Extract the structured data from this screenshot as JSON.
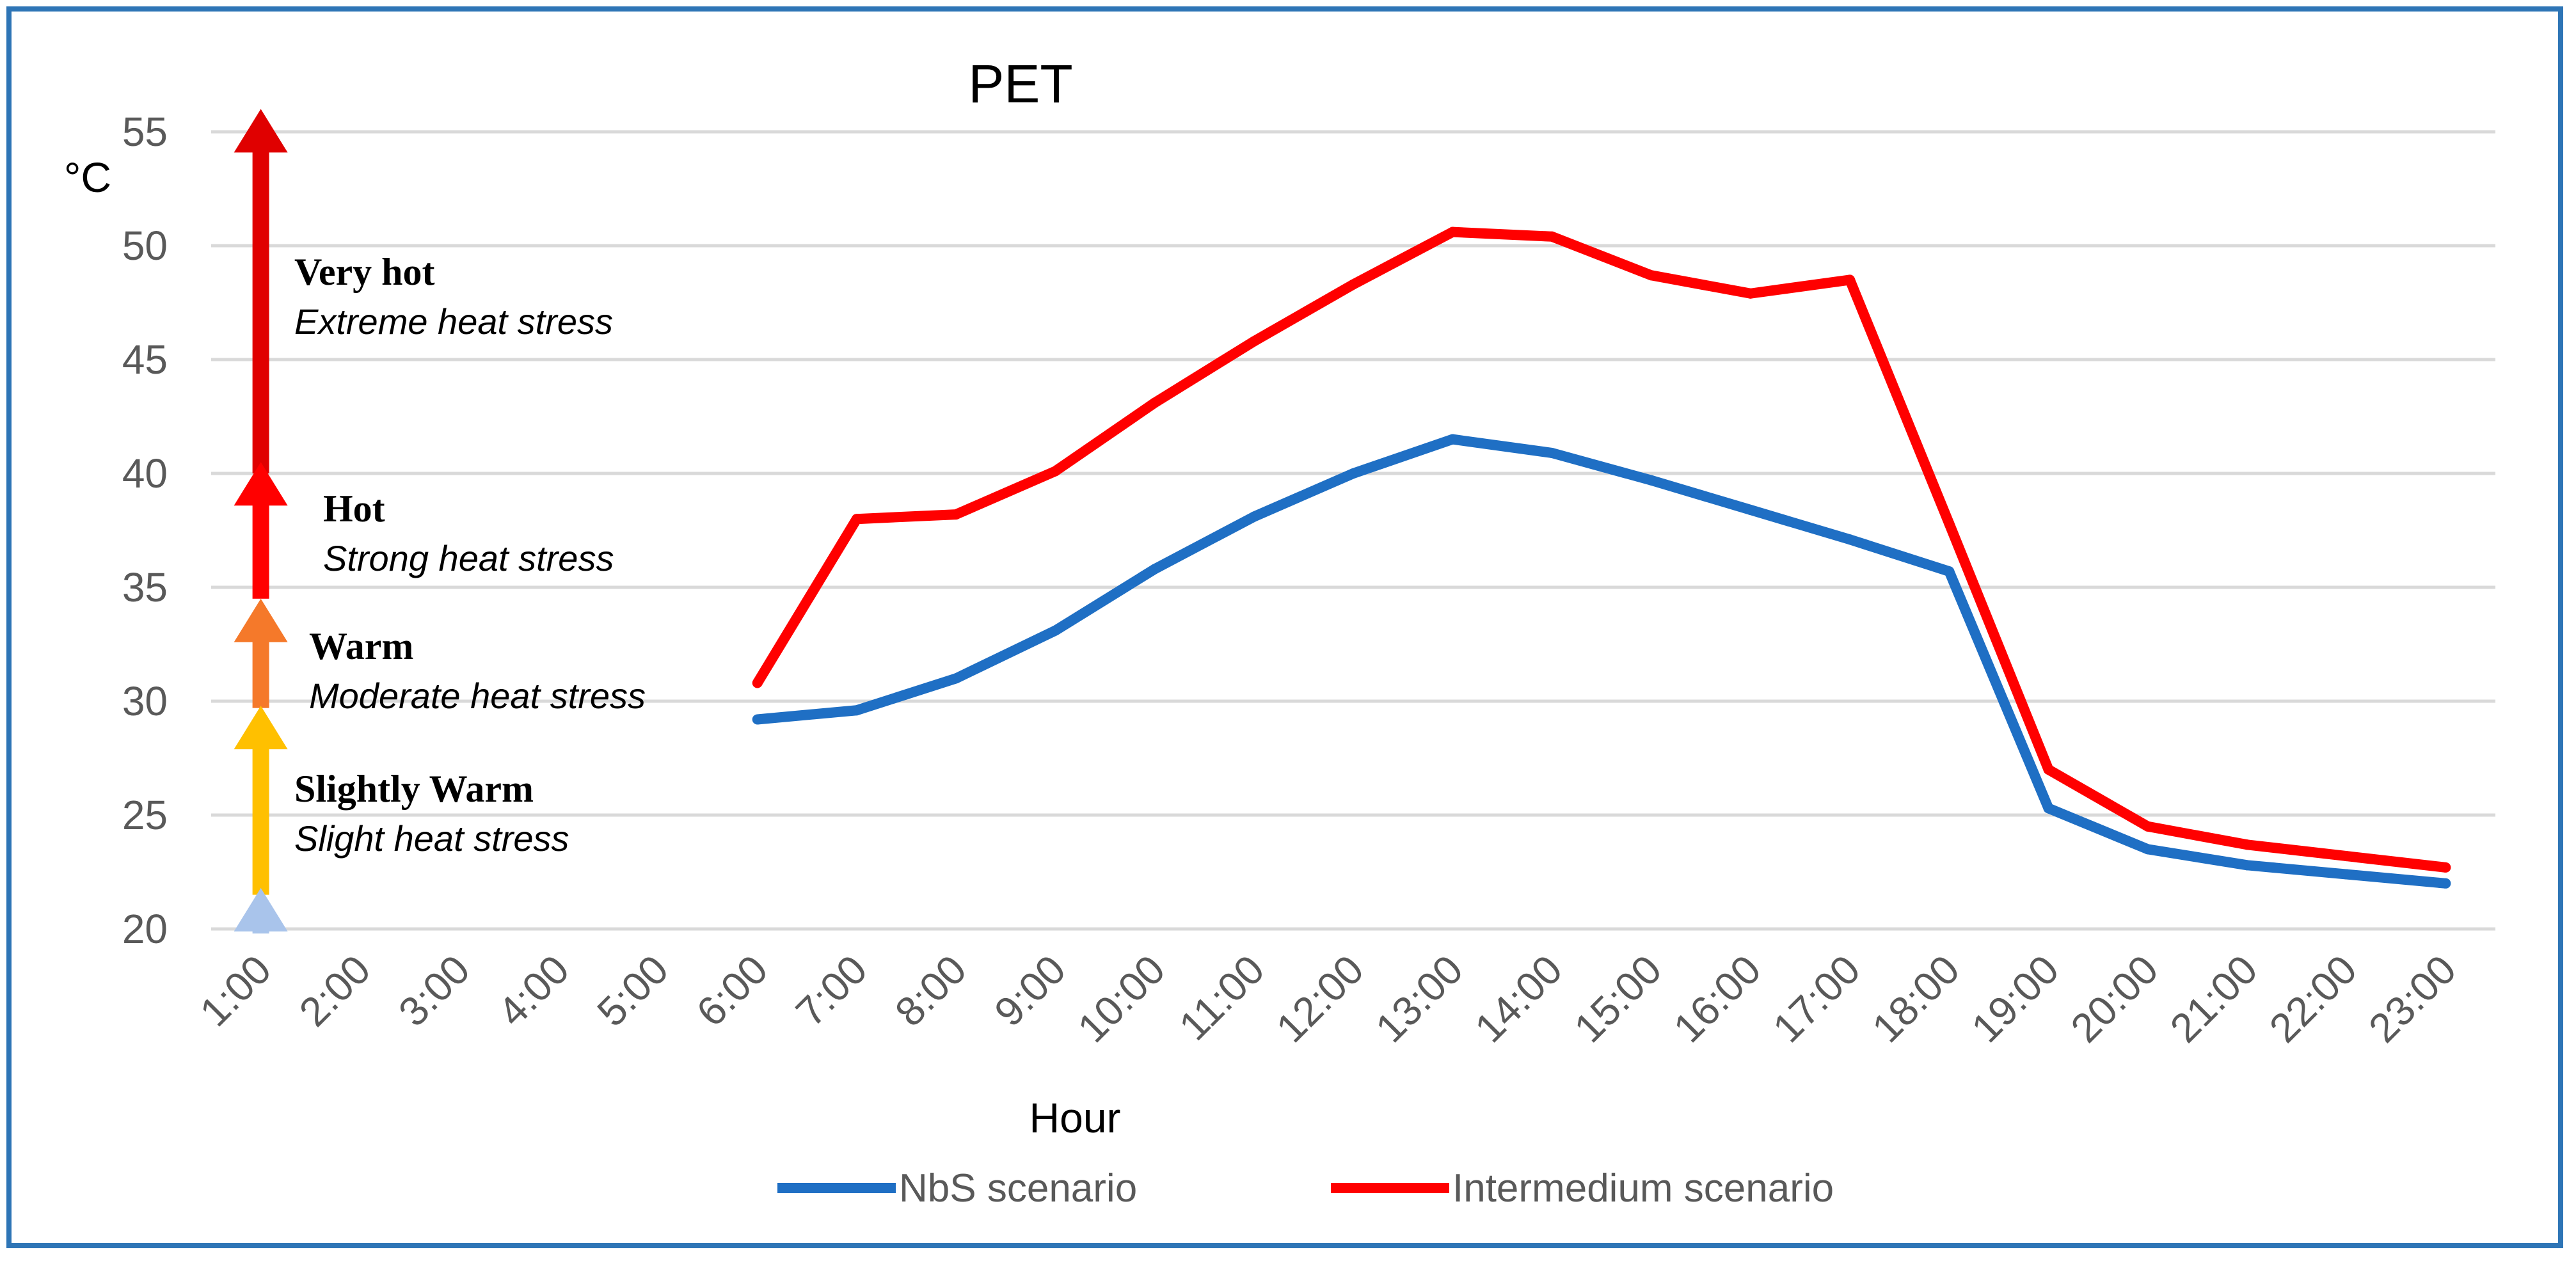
{
  "chart_data": {
    "type": "line",
    "title": "PET",
    "xlabel": "Hour",
    "ylabel": "°C",
    "categories": [
      "1:00",
      "2:00",
      "3:00",
      "4:00",
      "5:00",
      "6:00",
      "7:00",
      "8:00",
      "9:00",
      "10:00",
      "11:00",
      "12:00",
      "13:00",
      "14:00",
      "15:00",
      "16:00",
      "17:00",
      "18:00",
      "19:00",
      "20:00",
      "21:00",
      "22:00",
      "23:00"
    ],
    "ylim": [
      20,
      55
    ],
    "yticks": [
      20,
      25,
      30,
      35,
      40,
      45,
      50,
      55
    ],
    "grid": true,
    "legend_position": "bottom",
    "series": [
      {
        "name": "NbS scenario",
        "color": "#1F6FC4",
        "values": [
          null,
          null,
          null,
          null,
          null,
          29.2,
          29.6,
          31.0,
          33.1,
          35.8,
          38.1,
          40.0,
          41.5,
          40.9,
          39.7,
          38.4,
          37.1,
          35.7,
          25.3,
          23.5,
          22.8,
          22.4,
          22.0
        ]
      },
      {
        "name": "Intermedium scenario",
        "color": "#FF0000",
        "values": [
          null,
          null,
          null,
          null,
          null,
          30.8,
          38.0,
          38.2,
          40.1,
          43.1,
          45.8,
          48.3,
          50.6,
          50.4,
          48.7,
          47.9,
          48.5,
          37.8,
          27.0,
          24.5,
          23.7,
          23.2,
          22.7
        ]
      }
    ],
    "annotations": [
      {
        "title": "Very hot",
        "subtitle": "Extreme heat stress",
        "from": 40,
        "to": 56,
        "color": "#E00000"
      },
      {
        "title": "Hot",
        "subtitle": "Strong heat stress",
        "from": 34.5,
        "to": 40.5,
        "color": "#FF0000"
      },
      {
        "title": "Warm",
        "subtitle": "Moderate heat stress",
        "from": 29.7,
        "to": 34.5,
        "color": "#F5792A"
      },
      {
        "title": "Slightly Warm",
        "subtitle": "Slight heat stress",
        "from": 21.5,
        "to": 29.8,
        "color": "#FFC000"
      },
      {
        "title": "",
        "subtitle": "",
        "from": 19.8,
        "to": 21.8,
        "color": "#A9C4EB"
      }
    ]
  }
}
